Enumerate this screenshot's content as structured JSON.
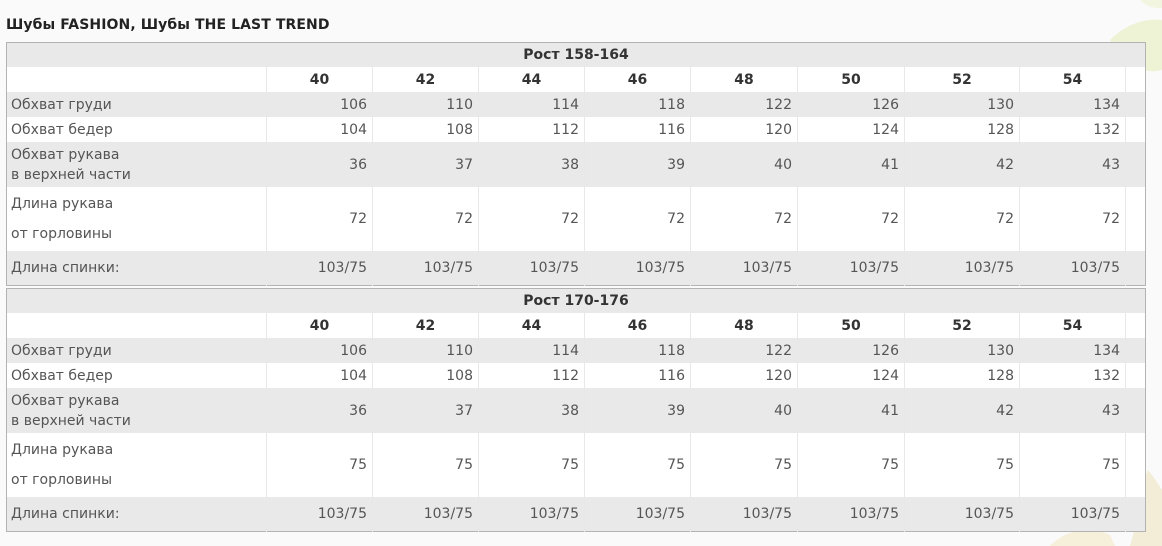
{
  "title": "Шубы FASHION, Шубы THE LAST TREND",
  "tables": [
    {
      "height_label": "Рост 158-164",
      "sizes": [
        "40",
        "42",
        "44",
        "46",
        "48",
        "50",
        "52",
        "54"
      ],
      "rows": [
        {
          "label_line1": "Обхват груди",
          "label_line2": "",
          "values": [
            "106",
            "110",
            "114",
            "118",
            "122",
            "126",
            "130",
            "134"
          ]
        },
        {
          "label_line1": "Обхват бедер",
          "label_line2": "",
          "values": [
            "104",
            "108",
            "112",
            "116",
            "120",
            "124",
            "128",
            "132"
          ]
        },
        {
          "label_line1": "Обхват рукава",
          "label_line2": "в верхней части",
          "values": [
            "36",
            "37",
            "38",
            "39",
            "40",
            "41",
            "42",
            "43"
          ]
        },
        {
          "label_line1": "Длина рукава",
          "label_line2": "от горловины",
          "values": [
            "72",
            "72",
            "72",
            "72",
            "72",
            "72",
            "72",
            "72"
          ]
        },
        {
          "label_line1": "Длина спинки:",
          "label_line2": "",
          "values": [
            "103/75",
            "103/75",
            "103/75",
            "103/75",
            "103/75",
            "103/75",
            "103/75",
            "103/75"
          ]
        }
      ]
    },
    {
      "height_label": "Рост 170-176",
      "sizes": [
        "40",
        "42",
        "44",
        "46",
        "48",
        "50",
        "52",
        "54"
      ],
      "rows": [
        {
          "label_line1": "Обхват груди",
          "label_line2": "",
          "values": [
            "106",
            "110",
            "114",
            "118",
            "122",
            "126",
            "130",
            "134"
          ]
        },
        {
          "label_line1": "Обхват бедер",
          "label_line2": "",
          "values": [
            "104",
            "108",
            "112",
            "116",
            "120",
            "124",
            "128",
            "132"
          ]
        },
        {
          "label_line1": "Обхват рукава",
          "label_line2": "в верхней части",
          "values": [
            "36",
            "37",
            "38",
            "39",
            "40",
            "41",
            "42",
            "43"
          ]
        },
        {
          "label_line1": "Длина рукава",
          "label_line2": "от горловины",
          "values": [
            "75",
            "75",
            "75",
            "75",
            "75",
            "75",
            "75",
            "75"
          ]
        },
        {
          "label_line1": "Длина спинки:",
          "label_line2": "",
          "values": [
            "103/75",
            "103/75",
            "103/75",
            "103/75",
            "103/75",
            "103/75",
            "103/75",
            "103/75"
          ]
        }
      ]
    }
  ]
}
